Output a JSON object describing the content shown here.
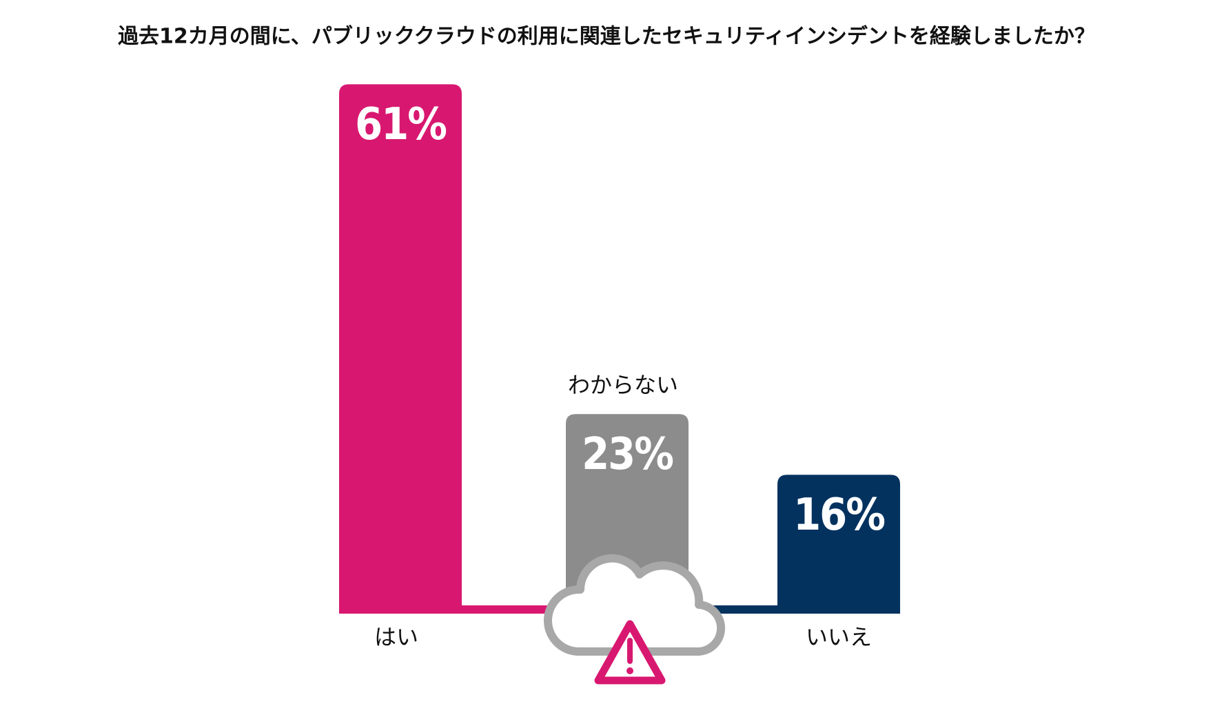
{
  "chart_data": {
    "type": "bar",
    "title": "過去12カ月の間に、パブリッククラウドの利用に関連したセキュリティインシデントを経験しましたか？",
    "categories": [
      "はい",
      "わからない",
      "いいえ"
    ],
    "values": [
      61,
      23,
      16
    ],
    "value_labels": [
      "61%",
      "23%",
      "16%"
    ],
    "colors": [
      "#d81870",
      "#8c8c8c",
      "#03325f"
    ]
  }
}
